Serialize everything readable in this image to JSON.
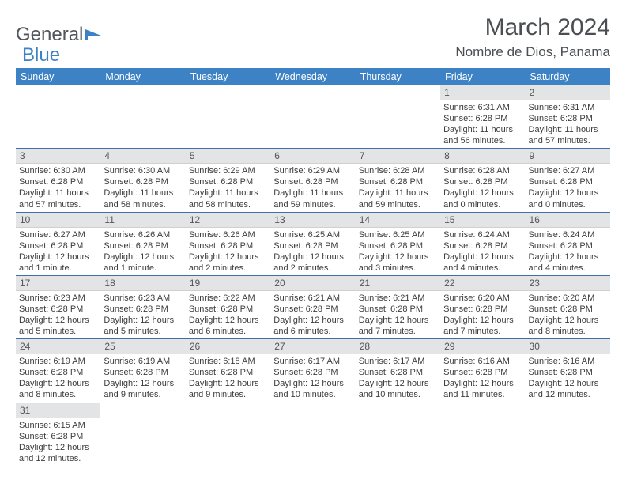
{
  "brand": {
    "part1": "General",
    "part2": "Blue"
  },
  "title": "March 2024",
  "location": "Nombre de Dios, Panama",
  "colors": {
    "header_bg": "#3d82c4",
    "header_text": "#ffffff",
    "daynum_bg": "#e3e4e5",
    "row_border": "#3d6fa8",
    "text": "#333333",
    "title_text": "#4a4e52"
  },
  "columns": [
    "Sunday",
    "Monday",
    "Tuesday",
    "Wednesday",
    "Thursday",
    "Friday",
    "Saturday"
  ],
  "weeks": [
    [
      {
        "n": "",
        "sr": "",
        "ss": "",
        "dl": ""
      },
      {
        "n": "",
        "sr": "",
        "ss": "",
        "dl": ""
      },
      {
        "n": "",
        "sr": "",
        "ss": "",
        "dl": ""
      },
      {
        "n": "",
        "sr": "",
        "ss": "",
        "dl": ""
      },
      {
        "n": "",
        "sr": "",
        "ss": "",
        "dl": ""
      },
      {
        "n": "1",
        "sr": "Sunrise: 6:31 AM",
        "ss": "Sunset: 6:28 PM",
        "dl": "Daylight: 11 hours and 56 minutes."
      },
      {
        "n": "2",
        "sr": "Sunrise: 6:31 AM",
        "ss": "Sunset: 6:28 PM",
        "dl": "Daylight: 11 hours and 57 minutes."
      }
    ],
    [
      {
        "n": "3",
        "sr": "Sunrise: 6:30 AM",
        "ss": "Sunset: 6:28 PM",
        "dl": "Daylight: 11 hours and 57 minutes."
      },
      {
        "n": "4",
        "sr": "Sunrise: 6:30 AM",
        "ss": "Sunset: 6:28 PM",
        "dl": "Daylight: 11 hours and 58 minutes."
      },
      {
        "n": "5",
        "sr": "Sunrise: 6:29 AM",
        "ss": "Sunset: 6:28 PM",
        "dl": "Daylight: 11 hours and 58 minutes."
      },
      {
        "n": "6",
        "sr": "Sunrise: 6:29 AM",
        "ss": "Sunset: 6:28 PM",
        "dl": "Daylight: 11 hours and 59 minutes."
      },
      {
        "n": "7",
        "sr": "Sunrise: 6:28 AM",
        "ss": "Sunset: 6:28 PM",
        "dl": "Daylight: 11 hours and 59 minutes."
      },
      {
        "n": "8",
        "sr": "Sunrise: 6:28 AM",
        "ss": "Sunset: 6:28 PM",
        "dl": "Daylight: 12 hours and 0 minutes."
      },
      {
        "n": "9",
        "sr": "Sunrise: 6:27 AM",
        "ss": "Sunset: 6:28 PM",
        "dl": "Daylight: 12 hours and 0 minutes."
      }
    ],
    [
      {
        "n": "10",
        "sr": "Sunrise: 6:27 AM",
        "ss": "Sunset: 6:28 PM",
        "dl": "Daylight: 12 hours and 1 minute."
      },
      {
        "n": "11",
        "sr": "Sunrise: 6:26 AM",
        "ss": "Sunset: 6:28 PM",
        "dl": "Daylight: 12 hours and 1 minute."
      },
      {
        "n": "12",
        "sr": "Sunrise: 6:26 AM",
        "ss": "Sunset: 6:28 PM",
        "dl": "Daylight: 12 hours and 2 minutes."
      },
      {
        "n": "13",
        "sr": "Sunrise: 6:25 AM",
        "ss": "Sunset: 6:28 PM",
        "dl": "Daylight: 12 hours and 2 minutes."
      },
      {
        "n": "14",
        "sr": "Sunrise: 6:25 AM",
        "ss": "Sunset: 6:28 PM",
        "dl": "Daylight: 12 hours and 3 minutes."
      },
      {
        "n": "15",
        "sr": "Sunrise: 6:24 AM",
        "ss": "Sunset: 6:28 PM",
        "dl": "Daylight: 12 hours and 4 minutes."
      },
      {
        "n": "16",
        "sr": "Sunrise: 6:24 AM",
        "ss": "Sunset: 6:28 PM",
        "dl": "Daylight: 12 hours and 4 minutes."
      }
    ],
    [
      {
        "n": "17",
        "sr": "Sunrise: 6:23 AM",
        "ss": "Sunset: 6:28 PM",
        "dl": "Daylight: 12 hours and 5 minutes."
      },
      {
        "n": "18",
        "sr": "Sunrise: 6:23 AM",
        "ss": "Sunset: 6:28 PM",
        "dl": "Daylight: 12 hours and 5 minutes."
      },
      {
        "n": "19",
        "sr": "Sunrise: 6:22 AM",
        "ss": "Sunset: 6:28 PM",
        "dl": "Daylight: 12 hours and 6 minutes."
      },
      {
        "n": "20",
        "sr": "Sunrise: 6:21 AM",
        "ss": "Sunset: 6:28 PM",
        "dl": "Daylight: 12 hours and 6 minutes."
      },
      {
        "n": "21",
        "sr": "Sunrise: 6:21 AM",
        "ss": "Sunset: 6:28 PM",
        "dl": "Daylight: 12 hours and 7 minutes."
      },
      {
        "n": "22",
        "sr": "Sunrise: 6:20 AM",
        "ss": "Sunset: 6:28 PM",
        "dl": "Daylight: 12 hours and 7 minutes."
      },
      {
        "n": "23",
        "sr": "Sunrise: 6:20 AM",
        "ss": "Sunset: 6:28 PM",
        "dl": "Daylight: 12 hours and 8 minutes."
      }
    ],
    [
      {
        "n": "24",
        "sr": "Sunrise: 6:19 AM",
        "ss": "Sunset: 6:28 PM",
        "dl": "Daylight: 12 hours and 8 minutes."
      },
      {
        "n": "25",
        "sr": "Sunrise: 6:19 AM",
        "ss": "Sunset: 6:28 PM",
        "dl": "Daylight: 12 hours and 9 minutes."
      },
      {
        "n": "26",
        "sr": "Sunrise: 6:18 AM",
        "ss": "Sunset: 6:28 PM",
        "dl": "Daylight: 12 hours and 9 minutes."
      },
      {
        "n": "27",
        "sr": "Sunrise: 6:17 AM",
        "ss": "Sunset: 6:28 PM",
        "dl": "Daylight: 12 hours and 10 minutes."
      },
      {
        "n": "28",
        "sr": "Sunrise: 6:17 AM",
        "ss": "Sunset: 6:28 PM",
        "dl": "Daylight: 12 hours and 10 minutes."
      },
      {
        "n": "29",
        "sr": "Sunrise: 6:16 AM",
        "ss": "Sunset: 6:28 PM",
        "dl": "Daylight: 12 hours and 11 minutes."
      },
      {
        "n": "30",
        "sr": "Sunrise: 6:16 AM",
        "ss": "Sunset: 6:28 PM",
        "dl": "Daylight: 12 hours and 12 minutes."
      }
    ],
    [
      {
        "n": "31",
        "sr": "Sunrise: 6:15 AM",
        "ss": "Sunset: 6:28 PM",
        "dl": "Daylight: 12 hours and 12 minutes."
      },
      {
        "n": "",
        "sr": "",
        "ss": "",
        "dl": ""
      },
      {
        "n": "",
        "sr": "",
        "ss": "",
        "dl": ""
      },
      {
        "n": "",
        "sr": "",
        "ss": "",
        "dl": ""
      },
      {
        "n": "",
        "sr": "",
        "ss": "",
        "dl": ""
      },
      {
        "n": "",
        "sr": "",
        "ss": "",
        "dl": ""
      },
      {
        "n": "",
        "sr": "",
        "ss": "",
        "dl": ""
      }
    ]
  ]
}
